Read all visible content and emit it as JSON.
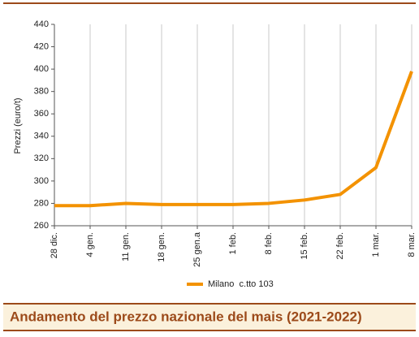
{
  "chart_data": {
    "type": "line",
    "title": "Andamento del prezzo nazionale del mais (2021-2022)",
    "y_label": "Prezzi (euro/t)",
    "categories": [
      "28 dic.",
      "4 gen.",
      "11 gen.",
      "18 gen.",
      "25 gen.a",
      "1 feb.",
      "8 feb.",
      "15 feb.",
      "22 feb.",
      "1 mar.",
      "8 mar."
    ],
    "series": [
      {
        "name": "Milano  c.tto 103",
        "color": "#f39200",
        "values": [
          278,
          278,
          280,
          279,
          279,
          279,
          280,
          283,
          288,
          312,
          398
        ]
      }
    ],
    "ylim": [
      260,
      440
    ],
    "yticks": [
      260,
      280,
      300,
      320,
      340,
      360,
      380,
      400,
      420,
      440
    ],
    "grid": "vertical"
  }
}
